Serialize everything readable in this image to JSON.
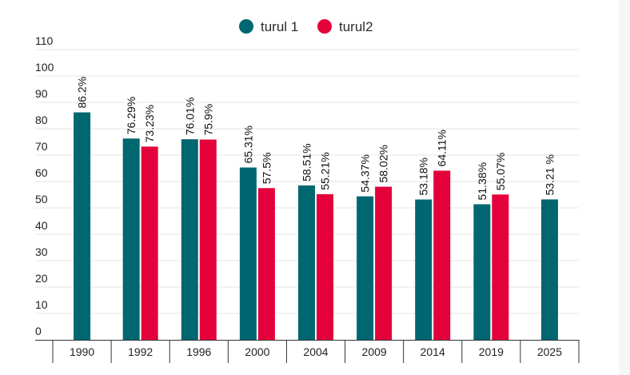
{
  "chart_data": {
    "type": "bar",
    "title": "",
    "xlabel": "",
    "ylabel": "",
    "ylim": [
      0,
      110
    ],
    "yticks": [
      0,
      10,
      20,
      30,
      40,
      50,
      60,
      70,
      80,
      90,
      100,
      110
    ],
    "grid": true,
    "legend_position": "top-center",
    "categories": [
      "1990",
      "1992",
      "1996",
      "2000",
      "2004",
      "2009",
      "2014",
      "2019",
      "2025"
    ],
    "series": [
      {
        "name": "turul 1",
        "color": "#006770",
        "values": [
          86.2,
          76.29,
          76.01,
          65.31,
          58.51,
          54.37,
          53.18,
          51.38,
          53.21
        ],
        "labels": [
          "86.2%",
          "76.29%",
          "76.01%",
          "65.31%",
          "58.51%",
          "54.37%",
          "53.18%",
          "51.38%",
          "53.21 %"
        ]
      },
      {
        "name": "turul2",
        "color": "#e4003a",
        "values": [
          null,
          73.23,
          75.9,
          57.5,
          55.21,
          58.02,
          64.11,
          55.07,
          null
        ],
        "labels": [
          "",
          "73.23%",
          "75.9%",
          "57.5%",
          "55.21%",
          "58.02%",
          "64.11%",
          "55.07%",
          ""
        ]
      }
    ]
  }
}
